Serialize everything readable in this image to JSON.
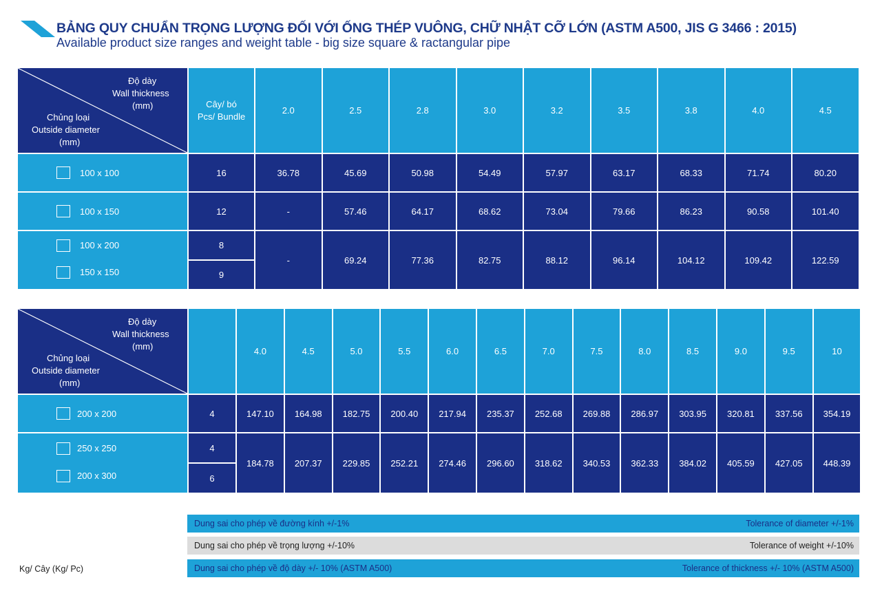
{
  "title": "BẢNG QUY CHUẨN TRỌNG LƯỢNG ĐỐI VỚI ỐNG THÉP VUÔNG, CHỮ NHẬT CỠ LỚN (ASTM A500, JIS G 3466 : 2015)",
  "subtitle": "Available product size ranges and weight table - big size square & ractangular pipe",
  "header": {
    "thickness_vi": "Độ dày",
    "thickness_en": "Wall thickness",
    "thickness_unit": "(mm)",
    "type_vi": "Chủng loại",
    "type_en": "Outside diameter",
    "type_unit": "(mm)",
    "bundle_vi": "Cây/ bó",
    "bundle_en": "Pcs/ Bundle"
  },
  "table1": {
    "thicknesses": [
      "2.0",
      "2.5",
      "2.8",
      "3.0",
      "3.2",
      "3.5",
      "3.8",
      "4.0",
      "4.5"
    ],
    "rows": [
      {
        "sizes": [
          "100 x 100"
        ],
        "bundles": [
          "16"
        ],
        "weights": [
          "36.78",
          "45.69",
          "50.98",
          "54.49",
          "57.97",
          "63.17",
          "68.33",
          "71.74",
          "80.20"
        ]
      },
      {
        "sizes": [
          "100 x 150"
        ],
        "bundles": [
          "12"
        ],
        "weights": [
          "-",
          "57.46",
          "64.17",
          "68.62",
          "73.04",
          "79.66",
          "86.23",
          "90.58",
          "101.40"
        ]
      },
      {
        "sizes": [
          "100 x 200",
          "150 x 150"
        ],
        "bundles": [
          "8",
          "9"
        ],
        "weights": [
          "-",
          "69.24",
          "77.36",
          "82.75",
          "88.12",
          "96.14",
          "104.12",
          "109.42",
          "122.59"
        ]
      }
    ]
  },
  "table2": {
    "thicknesses": [
      "4.0",
      "4.5",
      "5.0",
      "5.5",
      "6.0",
      "6.5",
      "7.0",
      "7.5",
      "8.0",
      "8.5",
      "9.0",
      "9.5",
      "10"
    ],
    "rows": [
      {
        "sizes": [
          "200 x 200"
        ],
        "bundles": [
          "4"
        ],
        "weights": [
          "147.10",
          "164.98",
          "182.75",
          "200.40",
          "217.94",
          "235.37",
          "252.68",
          "269.88",
          "286.97",
          "303.95",
          "320.81",
          "337.56",
          "354.19"
        ]
      },
      {
        "sizes": [
          "250 x 250",
          "200 x 300"
        ],
        "bundles": [
          "4",
          "6"
        ],
        "weights": [
          "184.78",
          "207.37",
          "229.85",
          "252.21",
          "274.46",
          "296.60",
          "318.62",
          "340.53",
          "362.33",
          "384.02",
          "405.59",
          "427.05",
          "448.39"
        ]
      }
    ]
  },
  "tolerances": [
    {
      "vi": "Dung sai cho phép về đường kính +/-1%",
      "en": "Tolerance of diameter +/-1%",
      "style": "blue"
    },
    {
      "vi": "Dung sai cho phép về trọng lượng +/-10%",
      "en": "Tolerance of weight +/-10%",
      "style": "grey"
    },
    {
      "vi": "Dung sai cho phép về độ dày +/- 10% (ASTM A500)",
      "en": "Tolerance of thickness +/- 10% (ASTM A500)",
      "style": "blue"
    }
  ],
  "unit_note": "Kg/ Cây (Kg/ Pc)",
  "colors": {
    "light": "#1ea2d8",
    "dark": "#1a2f86",
    "title": "#1e3a8a"
  }
}
